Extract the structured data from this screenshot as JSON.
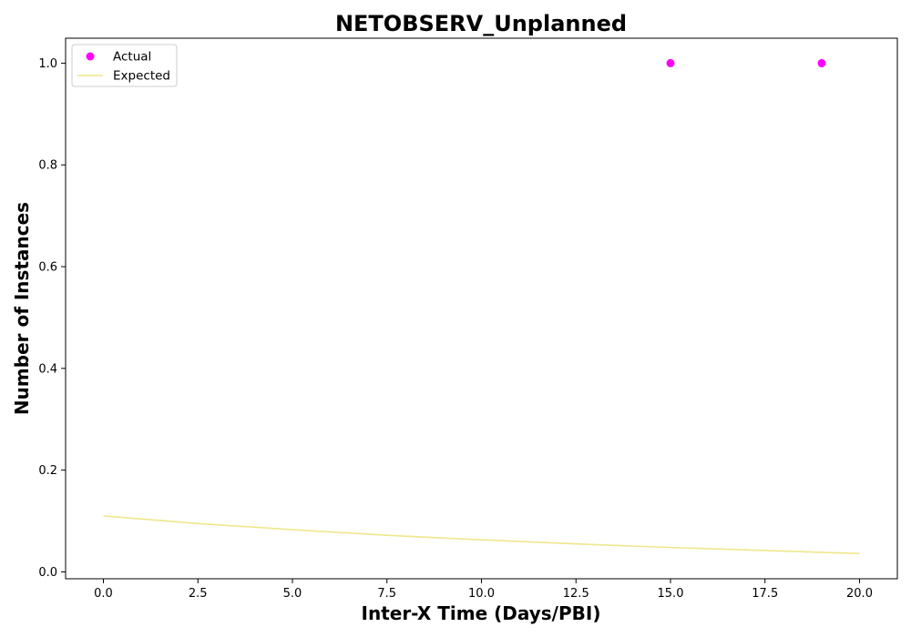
{
  "chart_data": {
    "type": "scatter",
    "title": "NETOBSERV_Unplanned",
    "xlabel": "Inter-X Time (Days/PBI)",
    "ylabel": "Number of Instances",
    "xlim": [
      -1.0,
      21.0
    ],
    "ylim": [
      -0.0135,
      1.049
    ],
    "x_ticks": [
      0.0,
      2.5,
      5.0,
      7.5,
      10.0,
      12.5,
      15.0,
      17.5,
      20.0
    ],
    "x_tick_labels": [
      "0.0",
      "2.5",
      "5.0",
      "7.5",
      "10.0",
      "12.5",
      "15.0",
      "17.5",
      "20.0"
    ],
    "y_ticks": [
      0.0,
      0.2,
      0.4,
      0.6,
      0.8,
      1.0
    ],
    "y_tick_labels": [
      "0.0",
      "0.2",
      "0.4",
      "0.6",
      "0.8",
      "1.0"
    ],
    "grid": false,
    "legend_position": "top-left",
    "series": [
      {
        "name": "Actual",
        "kind": "scatter",
        "color": "#ff00ff",
        "x": [
          15,
          19
        ],
        "y": [
          1.0,
          1.0
        ]
      },
      {
        "name": "Expected",
        "kind": "line",
        "color": "#f0e68c",
        "x": [
          0,
          2.5,
          5,
          7.5,
          10,
          12.5,
          15,
          17.5,
          20
        ],
        "y": [
          0.11,
          0.095,
          0.083,
          0.072,
          0.063,
          0.055,
          0.048,
          0.042,
          0.036
        ]
      }
    ]
  }
}
